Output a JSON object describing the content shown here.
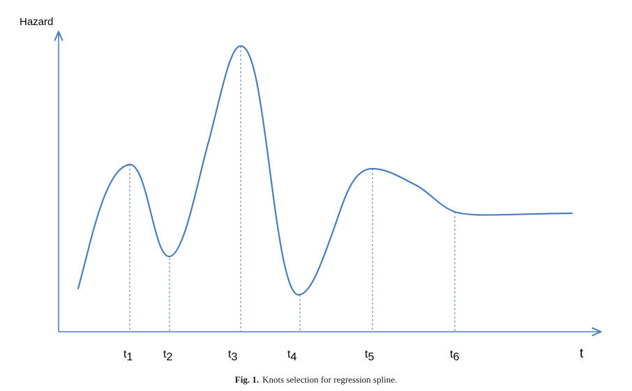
{
  "figure": {
    "y_axis_label": "Hazard",
    "x_axis_label": "t",
    "knots": [
      {
        "base": "t",
        "sub": "1"
      },
      {
        "base": "t",
        "sub": "2"
      },
      {
        "base": "t",
        "sub": "3"
      },
      {
        "base": "t",
        "sub": "4"
      },
      {
        "base": "t",
        "sub": "5"
      },
      {
        "base": "t",
        "sub": "6"
      }
    ],
    "colors": {
      "curve": "#4a7ebb",
      "axes": "#4a7ebb",
      "guides": "#4a7ebb"
    }
  },
  "caption": {
    "label": "Fig. 1.",
    "text": "Knots selection for regression spline."
  }
}
